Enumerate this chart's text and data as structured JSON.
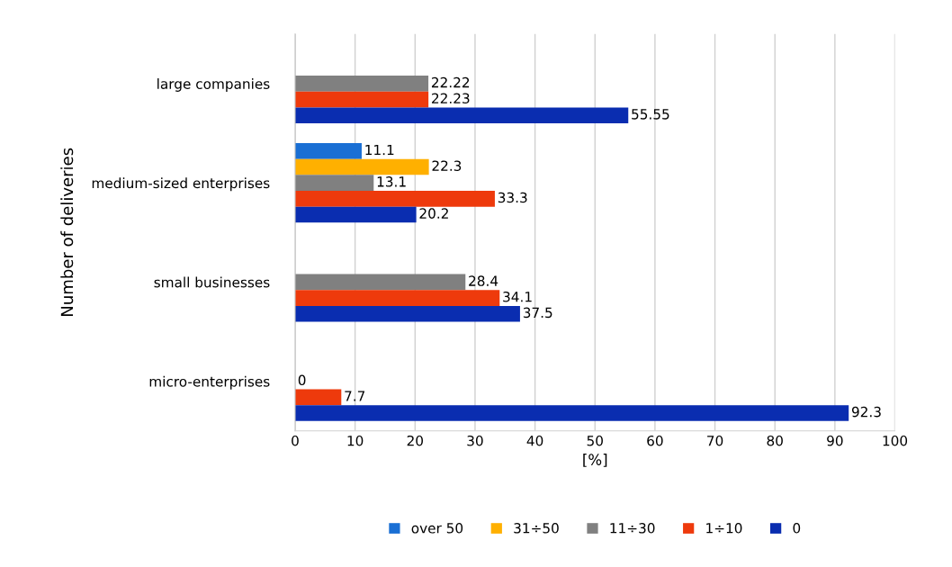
{
  "chart_data": {
    "type": "bar",
    "orientation": "horizontal",
    "xlabel": "[%]",
    "ylabel": "Number of deliveries",
    "categories": [
      "large companies",
      "medium-sized enterprises",
      "small businesses",
      "micro-enterprises"
    ],
    "series": [
      {
        "name": "over 50",
        "color": "#1a6fd4",
        "values": [
          null,
          11.1,
          null,
          null
        ]
      },
      {
        "name": "31÷50",
        "color": "#ffb000",
        "values": [
          null,
          22.3,
          null,
          null
        ]
      },
      {
        "name": "11÷30",
        "color": "#808080",
        "values": [
          22.22,
          13.1,
          28.4,
          0
        ]
      },
      {
        "name": "1÷10",
        "color": "#ee3a0c",
        "values": [
          22.23,
          33.3,
          34.1,
          7.7
        ]
      },
      {
        "name": "0",
        "color": "#0a2db0",
        "values": [
          55.55,
          20.2,
          37.5,
          92.3
        ]
      }
    ],
    "xlim": [
      0,
      100
    ],
    "xticks": [
      0,
      10,
      20,
      30,
      40,
      50,
      60,
      70,
      80,
      90,
      100
    ],
    "grid": "x",
    "legend": "bottom",
    "data_labels": true
  }
}
